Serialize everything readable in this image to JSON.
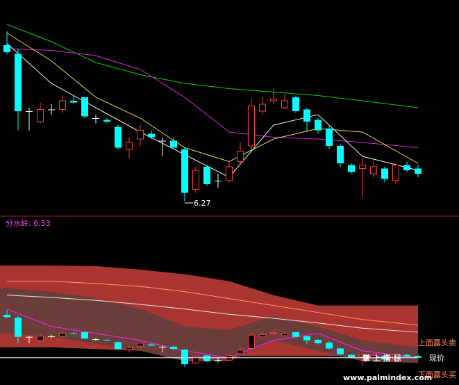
{
  "chart_data": [
    {
      "type": "candlestick",
      "ylim": [
        6.19,
        7.43
      ],
      "up_color": "#ff3c3c",
      "down_color": "#00ffff",
      "flat_color": "#ffffff",
      "ohlc": [
        [
          7.17,
          7.25,
          7.12,
          7.13
        ],
        [
          7.12,
          7.15,
          6.68,
          6.79
        ],
        [
          6.79,
          6.81,
          6.68,
          6.79
        ],
        [
          6.73,
          6.84,
          6.72,
          6.8
        ],
        [
          6.8,
          6.83,
          6.77,
          6.8
        ],
        [
          6.8,
          6.88,
          6.78,
          6.85
        ],
        [
          6.85,
          6.88,
          6.83,
          6.84
        ],
        [
          6.87,
          6.87,
          6.75,
          6.76
        ],
        [
          6.75,
          6.77,
          6.72,
          6.75
        ],
        [
          6.74,
          6.75,
          6.72,
          6.73
        ],
        [
          6.7,
          6.71,
          6.57,
          6.58
        ],
        [
          6.57,
          6.64,
          6.52,
          6.61
        ],
        [
          6.63,
          6.71,
          6.59,
          6.68
        ],
        [
          6.66,
          6.68,
          6.63,
          6.64
        ],
        [
          6.62,
          6.64,
          6.53,
          6.62
        ],
        [
          6.62,
          6.64,
          6.57,
          6.58
        ],
        [
          6.57,
          6.58,
          6.27,
          6.32
        ],
        [
          6.34,
          6.47,
          6.32,
          6.45
        ],
        [
          6.47,
          6.48,
          6.36,
          6.37
        ],
        [
          6.39,
          6.43,
          6.35,
          6.39
        ],
        [
          6.39,
          6.5,
          6.38,
          6.47
        ],
        [
          6.5,
          6.61,
          6.48,
          6.56
        ],
        [
          6.59,
          6.86,
          6.57,
          6.82
        ],
        [
          6.79,
          6.87,
          6.77,
          6.83
        ],
        [
          6.85,
          6.92,
          6.83,
          6.86
        ],
        [
          6.81,
          6.89,
          6.8,
          6.85
        ],
        [
          6.87,
          6.88,
          6.78,
          6.79
        ],
        [
          6.8,
          6.81,
          6.67,
          6.73
        ],
        [
          6.74,
          6.75,
          6.66,
          6.68
        ],
        [
          6.69,
          6.71,
          6.57,
          6.59
        ],
        [
          6.59,
          6.6,
          6.47,
          6.49
        ],
        [
          6.48,
          6.49,
          6.43,
          6.44
        ],
        [
          6.46,
          6.52,
          6.3,
          6.48
        ],
        [
          6.43,
          6.51,
          6.41,
          6.47
        ],
        [
          6.46,
          6.47,
          6.38,
          6.4
        ],
        [
          6.39,
          6.49,
          6.37,
          6.48
        ],
        [
          6.48,
          6.5,
          6.44,
          6.45
        ],
        [
          6.46,
          6.48,
          6.41,
          6.43
        ]
      ],
      "lines": [
        {
          "color": "#00d000",
          "x": [
            0,
            4,
            8,
            12,
            16,
            20,
            24,
            28,
            32,
            37
          ],
          "values": [
            7.29,
            7.19,
            7.07,
            7.0,
            6.95,
            6.92,
            6.9,
            6.88,
            6.85,
            6.81
          ]
        },
        {
          "color": "#e020e0",
          "x": [
            0,
            4,
            8,
            12,
            16,
            20,
            24,
            28,
            32,
            37
          ],
          "values": [
            7.15,
            7.14,
            7.11,
            7.03,
            6.87,
            6.67,
            6.64,
            6.63,
            6.61,
            6.58
          ]
        },
        {
          "color": "#e8e040",
          "x": [
            0,
            4,
            8,
            12,
            16,
            20,
            24,
            28,
            32,
            37
          ],
          "values": [
            7.24,
            7.08,
            6.87,
            6.75,
            6.58,
            6.5,
            6.63,
            6.69,
            6.67,
            6.49
          ]
        },
        {
          "color": "#f0f0f0",
          "x": [
            0,
            4,
            8,
            12,
            16,
            20,
            24,
            28,
            32,
            37
          ],
          "values": [
            7.18,
            6.95,
            6.81,
            6.67,
            6.54,
            6.41,
            6.71,
            6.77,
            6.53,
            6.45
          ]
        }
      ],
      "annotation": {
        "text": "6.27",
        "x": 16,
        "y": 6.27
      }
    },
    {
      "type": "band",
      "title": "分水岭: 6.53",
      "ylim": [
        5.96,
        8.86
      ],
      "x": [
        0,
        4,
        8,
        12,
        16,
        20,
        24,
        28,
        32,
        37
      ],
      "bands": [
        {
          "color": "#a8352f",
          "upper": [
            8.02,
            8.02,
            8.01,
            7.95,
            7.87,
            7.75,
            7.51,
            7.33,
            7.33,
            7.33
          ],
          "lower": [
            6.61,
            6.61,
            6.58,
            6.55,
            6.49,
            6.46,
            6.46,
            6.46,
            6.46,
            6.46
          ]
        },
        {
          "color": "#6a3c3a",
          "upper": [
            7.63,
            7.57,
            7.45,
            7.27,
            6.97,
            6.91,
            7.15,
            6.97,
            6.73,
            6.61
          ],
          "lower": [
            6.85,
            6.79,
            6.67,
            6.55,
            6.37,
            6.37,
            6.73,
            6.55,
            6.37,
            6.34
          ]
        }
      ],
      "lines": [
        {
          "color": "#ffa060",
          "values": [
            7.75,
            7.75,
            7.71,
            7.66,
            7.57,
            7.45,
            7.33,
            7.21,
            7.09,
            6.99
          ]
        },
        {
          "color": "#e8e8e8",
          "values": [
            7.51,
            7.47,
            7.42,
            7.35,
            7.27,
            7.18,
            7.11,
            7.03,
            6.94,
            6.87
          ]
        },
        {
          "color": "#ff20ff",
          "values": [
            7.27,
            6.97,
            6.85,
            6.73,
            6.55,
            6.43,
            6.73,
            6.85,
            6.55,
            6.43
          ]
        }
      ],
      "price_line": {
        "label": "现价",
        "value": 6.43
      },
      "upper_note": "上面露头卖",
      "lower_note": "下面露头买",
      "watermark": "www.palmindex.com",
      "brand": "掌 上 指 标"
    }
  ]
}
